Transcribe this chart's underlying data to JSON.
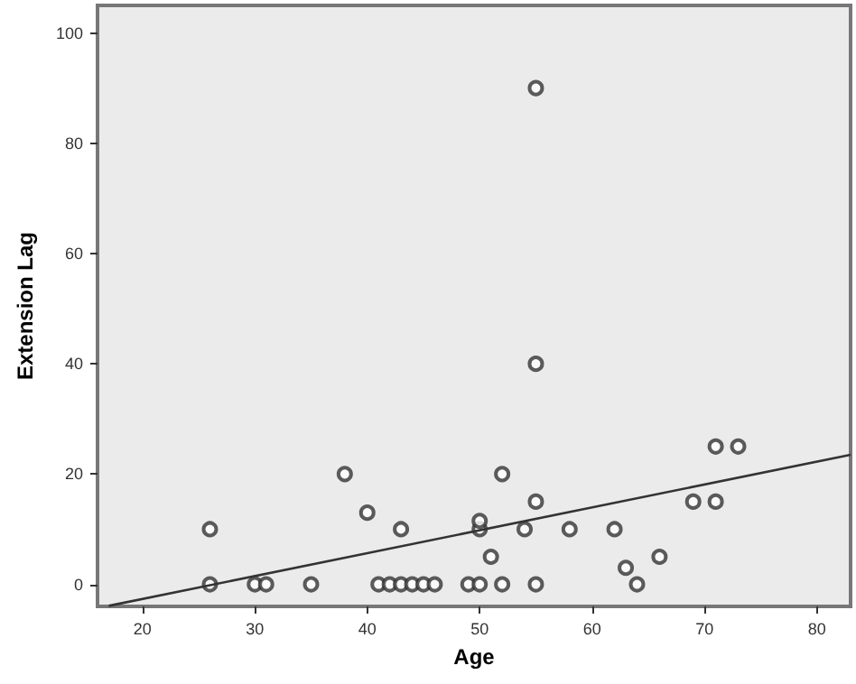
{
  "chart_data": {
    "type": "scatter",
    "xlabel": "Age",
    "ylabel": "Extension Lag",
    "xlim": [
      16,
      83
    ],
    "ylim": [
      -4,
      105
    ],
    "xticks": [
      20,
      30,
      40,
      50,
      60,
      70,
      80
    ],
    "yticks": [
      0,
      20,
      40,
      60,
      80,
      100
    ],
    "grid": false,
    "series": [
      {
        "color": "#333333",
        "marker": "circle",
        "x": [
          26,
          26,
          30,
          31,
          35,
          38,
          40,
          41,
          42,
          43,
          43,
          44,
          45,
          46,
          49,
          50,
          50,
          50,
          51,
          52,
          52,
          54,
          55,
          55,
          55,
          55,
          58,
          62,
          63,
          64,
          66,
          69,
          71,
          71,
          73
        ],
        "values": [
          10,
          0,
          0,
          0,
          0,
          20,
          13,
          0,
          0,
          0,
          10,
          0,
          0,
          0,
          0,
          0,
          10,
          11.5,
          5,
          0,
          20,
          10,
          0,
          15,
          40,
          90,
          10,
          10,
          3,
          0,
          5,
          15,
          15,
          25,
          25
        ]
      },
      {
        "type": "line",
        "color": "#333333",
        "marker": "none",
        "x": [
          17,
          83
        ],
        "values": [
          -3.9,
          23.5
        ]
      }
    ]
  }
}
